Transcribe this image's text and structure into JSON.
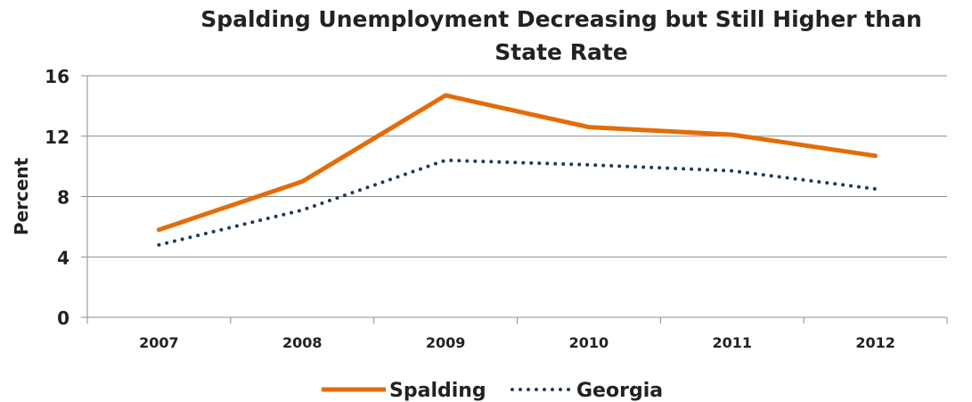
{
  "chart_data": {
    "type": "line",
    "title_lines": [
      "Spalding Unemployment Decreasing but Still Higher than",
      "State Rate"
    ],
    "ylabel": "Percent",
    "xlabel": "",
    "categories": [
      "2007",
      "2008",
      "2009",
      "2010",
      "2011",
      "2012"
    ],
    "ylim": [
      0,
      16
    ],
    "yticks": [
      "0",
      "4",
      "8",
      "12",
      "16"
    ],
    "grid": true,
    "legend_position": "bottom",
    "series": [
      {
        "name": "Spalding",
        "values": [
          5.8,
          9.0,
          14.7,
          12.6,
          12.1,
          10.7
        ],
        "color": "#E36C0A",
        "style": "solid"
      },
      {
        "name": "Georgia",
        "values": [
          4.8,
          7.1,
          10.4,
          10.1,
          9.7,
          8.5
        ],
        "color": "#1F3A5A",
        "style": "dotted"
      }
    ]
  }
}
